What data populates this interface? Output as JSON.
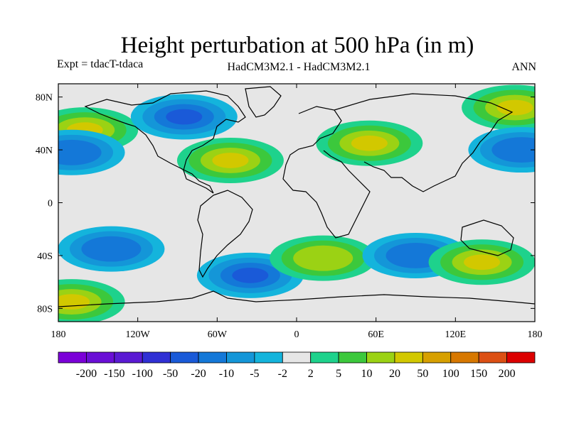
{
  "title": "Height perturbation at 500 hPa (in m)",
  "left_label": "Expt = tdacT-tdaca",
  "center_label": "HadCM3M2.1 - HadCM3M2.1",
  "right_label": "ANN",
  "map": {
    "lon_range": [
      -180,
      180
    ],
    "lat_range": [
      -90,
      90
    ],
    "lat_ticks": [
      {
        "value": 80,
        "label": "80N"
      },
      {
        "value": 40,
        "label": "40N"
      },
      {
        "value": 0,
        "label": "0"
      },
      {
        "value": -40,
        "label": "40S"
      },
      {
        "value": -80,
        "label": "80S"
      }
    ],
    "lon_ticks": [
      {
        "value": -180,
        "label": "180"
      },
      {
        "value": -120,
        "label": "120W"
      },
      {
        "value": -60,
        "label": "60W"
      },
      {
        "value": 0,
        "label": "0"
      },
      {
        "value": 60,
        "label": "60E"
      },
      {
        "value": 120,
        "label": "120E"
      },
      {
        "value": 180,
        "label": "180"
      }
    ]
  },
  "colorbar": {
    "colors": [
      "#7b00d8",
      "#6a0fd6",
      "#5a1ad3",
      "#3030d4",
      "#1a5ad8",
      "#1478d8",
      "#1496d8",
      "#14b4dc",
      "#e6e6e6",
      "#1ed28c",
      "#3cc83c",
      "#9bd214",
      "#d2c800",
      "#d7a000",
      "#d77800",
      "#dc5014",
      "#dc0000"
    ],
    "labels": [
      "-200",
      "-150",
      "-100",
      "-50",
      "-20",
      "-10",
      "-5",
      "-2",
      "2",
      "5",
      "10",
      "20",
      "50",
      "100",
      "150",
      "200"
    ]
  },
  "fields": [
    {
      "id": "pac_nh_pos",
      "lon": -160,
      "lat": 55,
      "value": 20
    },
    {
      "id": "nh_low",
      "lon": -85,
      "lat": 65,
      "value": -20
    },
    {
      "id": "atl_pos",
      "lon": -50,
      "lat": 32,
      "value": 20
    },
    {
      "id": "eurasia_pos",
      "lon": 55,
      "lat": 45,
      "value": 20
    },
    {
      "id": "pac_e_pos",
      "lon": 165,
      "lat": 72,
      "value": 20
    },
    {
      "id": "pac_e_neg",
      "lon": 170,
      "lat": 40,
      "value": -10
    },
    {
      "id": "pac_e_neg2",
      "lon": -170,
      "lat": 38,
      "value": -10
    },
    {
      "id": "sh_neg1",
      "lon": -140,
      "lat": -35,
      "value": -10
    },
    {
      "id": "sh_neg2",
      "lon": -35,
      "lat": -55,
      "value": -20
    },
    {
      "id": "sh_pos1",
      "lon": 20,
      "lat": -42,
      "value": 10
    },
    {
      "id": "sh_neg3",
      "lon": 90,
      "lat": -40,
      "value": -10
    },
    {
      "id": "sh_pos2",
      "lon": 140,
      "lat": -45,
      "value": 20
    },
    {
      "id": "sh_pos3",
      "lon": -170,
      "lat": -75,
      "value": 20
    }
  ]
}
